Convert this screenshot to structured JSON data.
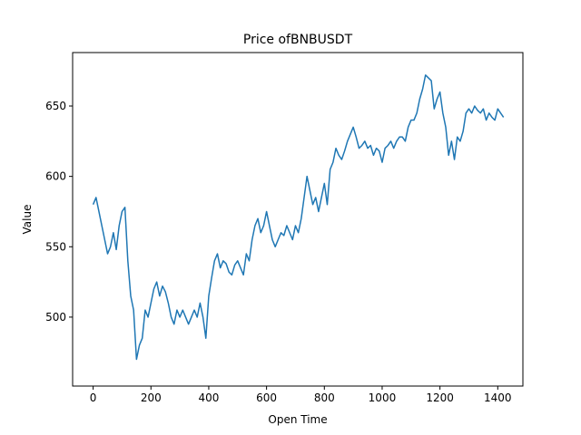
{
  "chart_data": {
    "type": "line",
    "title": "Price ofBNBUSDT",
    "x_label": "Open Time",
    "y_label": "Value",
    "x": [
      0,
      10,
      20,
      30,
      40,
      50,
      60,
      70,
      80,
      90,
      100,
      110,
      120,
      130,
      140,
      150,
      160,
      170,
      180,
      190,
      200,
      210,
      220,
      230,
      240,
      250,
      260,
      270,
      280,
      290,
      300,
      310,
      320,
      330,
      340,
      350,
      360,
      370,
      380,
      390,
      400,
      410,
      420,
      430,
      440,
      450,
      460,
      470,
      480,
      490,
      500,
      510,
      520,
      530,
      540,
      550,
      560,
      570,
      580,
      590,
      600,
      610,
      620,
      630,
      640,
      650,
      660,
      670,
      680,
      690,
      700,
      710,
      720,
      730,
      740,
      750,
      760,
      770,
      780,
      790,
      800,
      810,
      820,
      830,
      840,
      850,
      860,
      870,
      880,
      890,
      900,
      910,
      920,
      930,
      940,
      950,
      960,
      970,
      980,
      990,
      1000,
      1010,
      1020,
      1030,
      1040,
      1050,
      1060,
      1070,
      1080,
      1090,
      1100,
      1110,
      1120,
      1130,
      1140,
      1150,
      1160,
      1170,
      1180,
      1190,
      1200,
      1210,
      1220,
      1230,
      1240,
      1250,
      1260,
      1270,
      1280,
      1290,
      1300,
      1310,
      1320,
      1330,
      1340,
      1350,
      1360,
      1370,
      1380,
      1390,
      1400,
      1410,
      1420
    ],
    "series": [
      {
        "name": "BNBUSDT",
        "color": "#1f77b4",
        "values": [
          580,
          585,
          575,
          565,
          555,
          545,
          550,
          560,
          548,
          565,
          575,
          578,
          540,
          515,
          505,
          470,
          480,
          485,
          505,
          500,
          510,
          520,
          525,
          515,
          522,
          518,
          510,
          500,
          495,
          505,
          500,
          505,
          500,
          495,
          500,
          505,
          500,
          510,
          500,
          485,
          515,
          528,
          540,
          545,
          535,
          540,
          538,
          532,
          530,
          537,
          540,
          535,
          530,
          545,
          540,
          555,
          565,
          570,
          560,
          565,
          575,
          565,
          555,
          550,
          555,
          560,
          558,
          565,
          560,
          555,
          565,
          560,
          570,
          585,
          600,
          590,
          580,
          585,
          575,
          585,
          595,
          580,
          605,
          610,
          620,
          615,
          612,
          618,
          625,
          630,
          635,
          628,
          620,
          622,
          625,
          620,
          622,
          615,
          620,
          618,
          610,
          620,
          622,
          625,
          620,
          625,
          628,
          628,
          625,
          635,
          640,
          640,
          645,
          655,
          662,
          672,
          670,
          668,
          648,
          655,
          660,
          645,
          635,
          615,
          625,
          612,
          628,
          625,
          632,
          645,
          648,
          645,
          650,
          647,
          645,
          648,
          640,
          645,
          642,
          640,
          648,
          645,
          642
        ]
      }
    ],
    "xlim": [
      -71,
      1487
    ],
    "ylim": [
      451,
      688
    ],
    "xticks": [
      0,
      200,
      400,
      600,
      800,
      1000,
      1200,
      1400
    ],
    "yticks": [
      500,
      550,
      600,
      650
    ]
  }
}
